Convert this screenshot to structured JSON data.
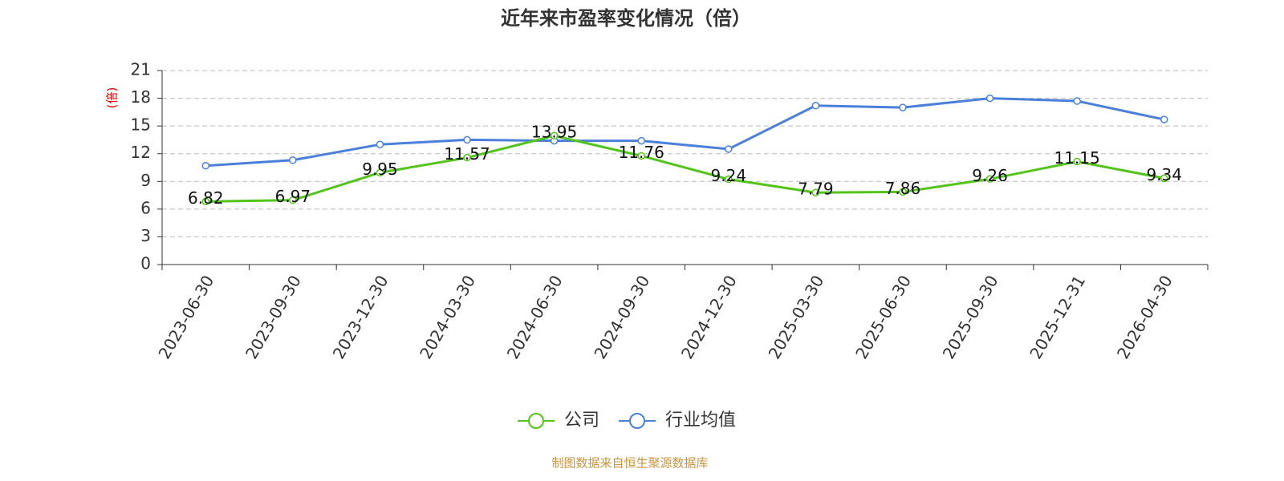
{
  "chart_data": {
    "type": "line",
    "title": "近年来市盈率变化情况（倍）",
    "y_label": "(倍)",
    "categories": [
      "2023-06-30",
      "2023-09-30",
      "2023-12-30",
      "2024-03-30",
      "2024-06-30",
      "2024-09-30",
      "2024-12-30",
      "2025-03-30",
      "2025-06-30",
      "2025-09-30",
      "2025-12-31",
      "2026-04-30"
    ],
    "series": [
      {
        "name": "公司",
        "color": "#52c41a",
        "show_labels": true,
        "values": [
          6.82,
          6.97,
          9.95,
          11.57,
          13.95,
          11.76,
          9.24,
          7.79,
          7.86,
          9.26,
          11.15,
          9.34
        ]
      },
      {
        "name": "行业均值",
        "color": "#4a7fdc",
        "show_labels": false,
        "values": [
          10.7,
          11.3,
          13.0,
          13.5,
          13.4,
          13.4,
          12.5,
          17.2,
          17.0,
          18.0,
          17.7,
          15.7
        ]
      }
    ],
    "ylim": [
      0,
      21
    ],
    "yticks": [
      0,
      3,
      6,
      9,
      12,
      15,
      18,
      21
    ],
    "grid": true,
    "legend": "bottom",
    "source": "制图数据来自恒生聚源数据库"
  }
}
